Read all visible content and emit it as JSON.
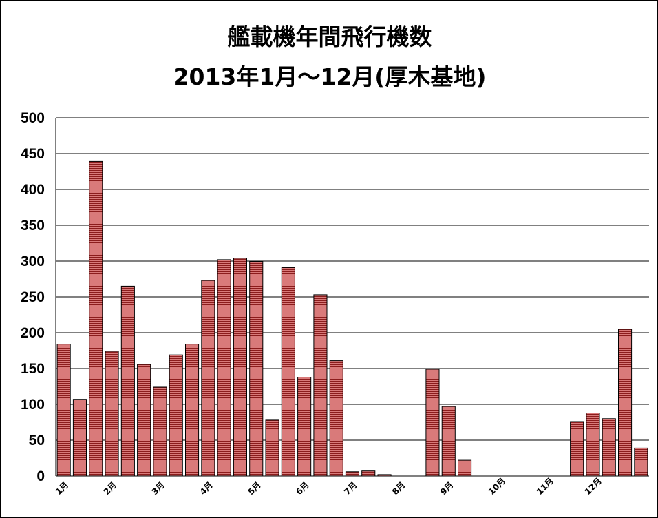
{
  "chart_data": {
    "type": "bar",
    "title": "艦載機年間飛行機数",
    "subtitle": "2013年1月～12月(厚木基地)",
    "xlabel": "",
    "ylabel": "",
    "ylim": [
      0,
      500
    ],
    "yticks": [
      0,
      50,
      100,
      150,
      200,
      250,
      300,
      350,
      400,
      450,
      500
    ],
    "grid": true,
    "month_labels": [
      "1月",
      "2月",
      "3月",
      "4月",
      "5月",
      "6月",
      "7月",
      "8月",
      "9月",
      "10月",
      "11月",
      "12月"
    ],
    "values": [
      184,
      107,
      439,
      174,
      265,
      156,
      124,
      169,
      184,
      273,
      302,
      304,
      299,
      78,
      291,
      138,
      253,
      161,
      6,
      7,
      2,
      0,
      0,
      149,
      97,
      22,
      0,
      0,
      0,
      0,
      0,
      0,
      76,
      88,
      80,
      205,
      39
    ],
    "bar_color": "#d97a7a",
    "bar_stripe_color": "#8b1c1c"
  }
}
